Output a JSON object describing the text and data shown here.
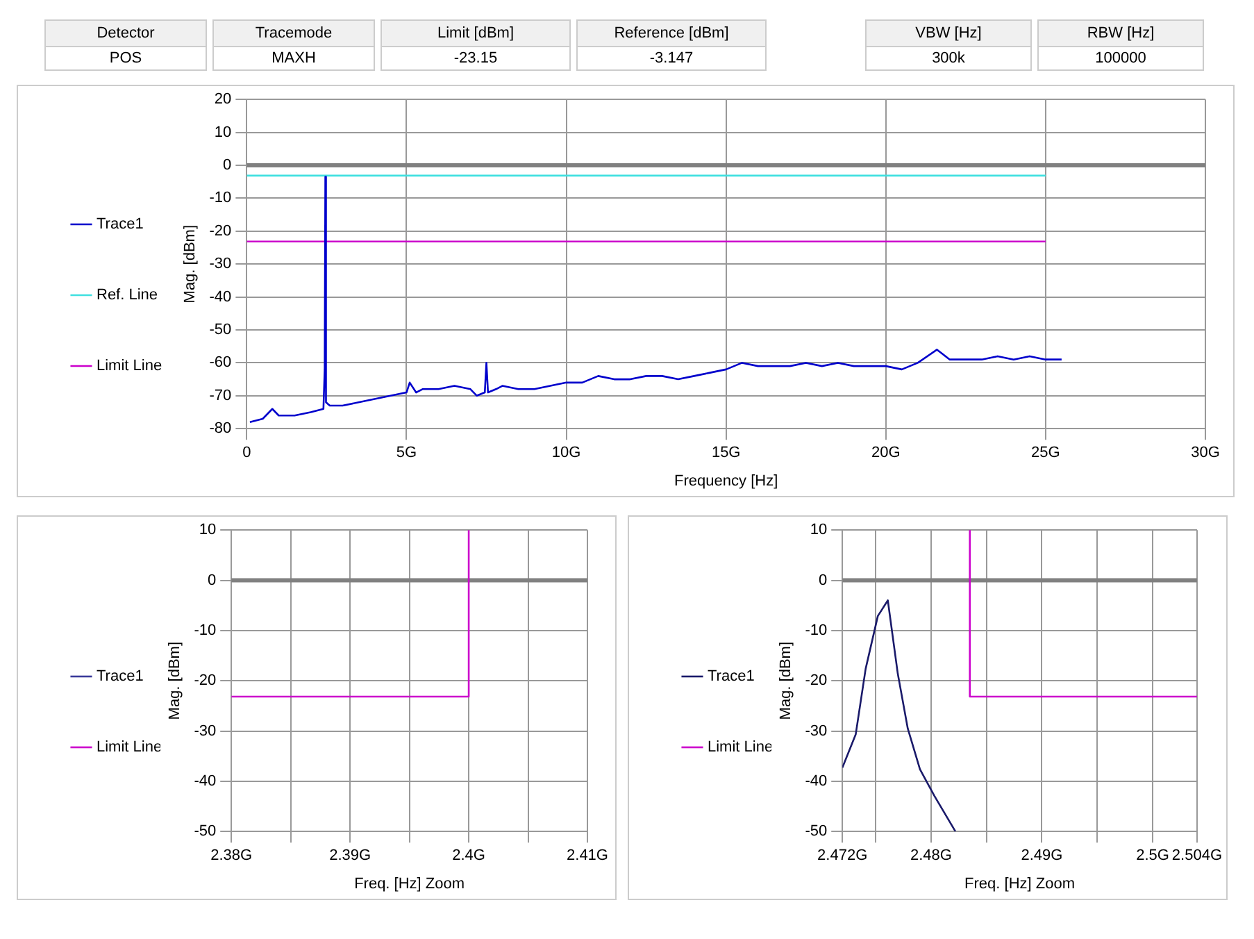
{
  "chart_data": [
    {
      "type": "other",
      "annotations": [
        "Detector",
        "POS",
        "Tracemode",
        "MAXH",
        "Limit [dBm]",
        "-23.15",
        "Reference [dBm]",
        "-3.147",
        "VBW [Hz]",
        "300k",
        "RBW [Hz]",
        "100000"
      ]
    },
    {
      "type": "line",
      "xlabel": "Frequency [Hz]",
      "ylabel": "Mag. [dBm]",
      "xlim": [
        0,
        30
      ],
      "xticks": [
        0,
        {
          "value": 5,
          "label": "5G"
        },
        {
          "value": 10,
          "label": "10G"
        },
        {
          "value": 15,
          "label": "15G"
        },
        {
          "value": 20,
          "label": "20G"
        },
        {
          "value": 25,
          "label": "25G"
        },
        {
          "value": 30,
          "label": "30G"
        }
      ],
      "ylim": [
        -80,
        20
      ],
      "yticks": [
        -80,
        -70,
        -60,
        -50,
        -40,
        -30,
        -20,
        -10,
        0,
        10,
        20
      ],
      "grid": true,
      "legend": "left",
      "marker": "none",
      "ref_lines": [
        {
          "axis": "y",
          "value": 0,
          "color": "#808080"
        }
      ],
      "series": [
        {
          "name": "Trace1",
          "color": "#0000cc",
          "x": [
            0.1,
            0.5,
            0.8,
            1.0,
            1.5,
            2.0,
            2.4,
            2.44,
            2.46,
            2.48,
            2.6,
            3.0,
            3.5,
            4.0,
            4.5,
            5.0,
            5.1,
            5.3,
            5.5,
            6.0,
            6.5,
            7.0,
            7.2,
            7.45,
            7.5,
            7.55,
            7.8,
            8.0,
            8.5,
            9.0,
            9.5,
            10.0,
            10.5,
            11.0,
            11.5,
            12.0,
            12.5,
            13.0,
            13.5,
            14.0,
            14.5,
            15.0,
            15.5,
            16.0,
            16.5,
            17.0,
            17.5,
            18.0,
            18.5,
            19.0,
            19.5,
            20.0,
            20.5,
            21.0,
            21.6,
            22.0,
            22.5,
            23.0,
            23.5,
            24.0,
            24.5,
            25.0,
            25.5
          ],
          "values": [
            -78,
            -77,
            -74,
            -76,
            -76,
            -75,
            -74,
            -62,
            -3.5,
            -72,
            -73,
            -73,
            -72,
            -71,
            -70,
            -69,
            -66,
            -69,
            -68,
            -68,
            -67,
            -68,
            -70,
            -69,
            -60,
            -69,
            -68,
            -67,
            -68,
            -68,
            -67,
            -66,
            -66,
            -64,
            -65,
            -65,
            -64,
            -64,
            -65,
            -64,
            -63,
            -62,
            -60,
            -61,
            -61,
            -61,
            -60,
            -61,
            -60,
            -61,
            -61,
            -61,
            -62,
            -60,
            -56,
            -59,
            -59,
            -59,
            -58,
            -59,
            -58,
            -59,
            -59
          ]
        },
        {
          "name": "Ref. Line",
          "color": "#40e0e0",
          "x": [
            0,
            25
          ],
          "values": [
            -3.147,
            -3.147
          ]
        },
        {
          "name": "Limit Line",
          "color": "#cc00cc",
          "x": [
            0,
            25
          ],
          "values": [
            -23.15,
            -23.15
          ]
        }
      ]
    },
    {
      "type": "line",
      "xlabel": "Freq. [Hz] Zoom",
      "ylabel": "Mag. [dBm]",
      "xlim": [
        2.38,
        2.41
      ],
      "xticks": [
        {
          "value": 2.38,
          "label": "2.38G"
        },
        {
          "value": 2.385,
          "label": null
        },
        {
          "value": 2.39,
          "label": "2.39G"
        },
        {
          "value": 2.395,
          "label": null
        },
        {
          "value": 2.4,
          "label": "2.4G"
        },
        {
          "value": 2.405,
          "label": null
        },
        {
          "value": 2.41,
          "label": "2.41G"
        }
      ],
      "ylim": [
        -50,
        10
      ],
      "yticks": [
        -50,
        -40,
        -30,
        -20,
        -10,
        0,
        10
      ],
      "grid": true,
      "legend": "left",
      "marker": "none",
      "ref_lines": [
        {
          "axis": "y",
          "value": 0,
          "color": "#808080"
        }
      ],
      "series": [
        {
          "name": "Trace1",
          "color": "#3a3a9a"
        },
        {
          "name": "Limit Line",
          "color": "#cc00cc",
          "x": [
            2.38,
            2.4,
            2.4
          ],
          "values": [
            -23.15,
            -23.15,
            10
          ]
        }
      ]
    },
    {
      "type": "line",
      "xlabel": "Freq. [Hz] Zoom",
      "ylabel": "Mag. [dBm]",
      "xlim": [
        2.472,
        2.504
      ],
      "xticks": [
        {
          "value": 2.472,
          "label": "2.472G"
        },
        {
          "value": 2.475,
          "label": null
        },
        {
          "value": 2.48,
          "label": "2.48G"
        },
        {
          "value": 2.485,
          "label": null
        },
        {
          "value": 2.49,
          "label": "2.49G"
        },
        {
          "value": 2.495,
          "label": null
        },
        {
          "value": 2.5,
          "label": "2.5G"
        },
        {
          "value": 2.504,
          "label": "2.504G"
        }
      ],
      "ylim": [
        -50,
        10
      ],
      "yticks": [
        -50,
        -40,
        -30,
        -20,
        -10,
        0,
        10
      ],
      "grid": true,
      "legend": "left",
      "marker": "none",
      "ref_lines": [
        {
          "axis": "y",
          "value": 0,
          "color": "#808080"
        }
      ],
      "series": [
        {
          "name": "Trace1",
          "color": "#1a1a6a",
          "x": [
            2.472,
            2.4732,
            2.4741,
            2.4752,
            2.4761,
            2.477,
            2.4779,
            2.479,
            2.4803,
            2.4822
          ],
          "values": [
            -37.3,
            -30.7,
            -17.6,
            -7.1,
            -4,
            -18.6,
            -29.5,
            -37.6,
            -42.9,
            -50
          ]
        },
        {
          "name": "Limit Line",
          "color": "#cc00cc",
          "x": [
            2.4835,
            2.4835,
            2.504
          ],
          "values": [
            10,
            -23.15,
            -23.15
          ]
        }
      ]
    }
  ]
}
